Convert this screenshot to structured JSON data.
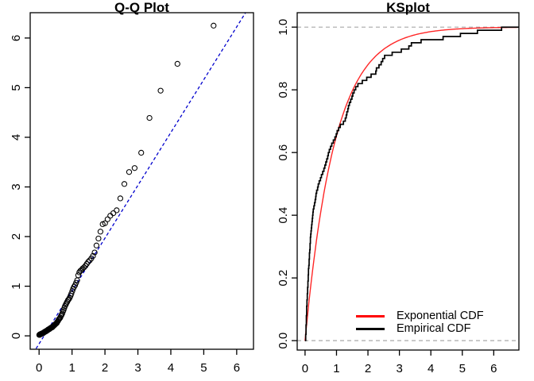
{
  "window": {
    "background": "#ffffff"
  },
  "chart_data": [
    {
      "type": "scatter",
      "title": "Q-Q Plot",
      "xlabel": "",
      "ylabel": "",
      "xlim": [
        -0.27,
        6.51
      ],
      "ylim": [
        -0.27,
        6.51
      ],
      "x_ticks": [
        0,
        1,
        2,
        3,
        4,
        5,
        6
      ],
      "y_ticks": [
        0,
        1,
        2,
        3,
        4,
        5,
        6
      ],
      "grid": false,
      "marker": {
        "shape": "open-circle",
        "color": "#000000",
        "radius_px": 3.1
      },
      "reference_line": {
        "slope": 1.064,
        "intercept": -0.16,
        "color": "#0000cd",
        "dash": [
          4,
          3
        ]
      },
      "theoretical_quantiles": [
        0.005,
        0.015,
        0.025,
        0.036,
        0.046,
        0.057,
        0.067,
        0.078,
        0.089,
        0.1,
        0.111,
        0.122,
        0.134,
        0.145,
        0.157,
        0.168,
        0.18,
        0.192,
        0.205,
        0.217,
        0.229,
        0.242,
        0.255,
        0.268,
        0.281,
        0.294,
        0.308,
        0.322,
        0.335,
        0.35,
        0.364,
        0.378,
        0.393,
        0.408,
        0.423,
        0.439,
        0.454,
        0.47,
        0.486,
        0.503,
        0.519,
        0.536,
        0.553,
        0.571,
        0.589,
        0.607,
        0.625,
        0.644,
        0.664,
        0.683,
        0.703,
        0.724,
        0.744,
        0.766,
        0.787,
        0.81,
        0.832,
        0.856,
        0.879,
        0.904,
        0.929,
        0.955,
        0.981,
        1.008,
        1.036,
        1.064,
        1.094,
        1.124,
        1.155,
        1.187,
        1.221,
        1.255,
        1.291,
        1.328,
        1.366,
        1.407,
        1.448,
        1.492,
        1.537,
        1.585,
        1.635,
        1.687,
        1.743,
        1.802,
        1.864,
        1.931,
        2.002,
        2.079,
        2.163,
        2.254,
        2.354,
        2.465,
        2.59,
        2.733,
        2.9,
        3.101,
        3.352,
        3.689,
        4.2,
        5.298
      ],
      "sample_quantiles": [
        0.02,
        0.02,
        0.03,
        0.03,
        0.03,
        0.04,
        0.04,
        0.04,
        0.05,
        0.05,
        0.05,
        0.06,
        0.06,
        0.07,
        0.07,
        0.08,
        0.08,
        0.09,
        0.09,
        0.1,
        0.1,
        0.11,
        0.11,
        0.12,
        0.13,
        0.13,
        0.14,
        0.14,
        0.15,
        0.16,
        0.16,
        0.17,
        0.17,
        0.18,
        0.19,
        0.2,
        0.21,
        0.22,
        0.23,
        0.24,
        0.25,
        0.26,
        0.28,
        0.3,
        0.32,
        0.34,
        0.35,
        0.37,
        0.4,
        0.42,
        0.45,
        0.49,
        0.52,
        0.56,
        0.6,
        0.63,
        0.66,
        0.69,
        0.72,
        0.74,
        0.77,
        0.81,
        0.85,
        0.9,
        0.95,
        0.99,
        1.02,
        1.07,
        1.12,
        1.22,
        1.28,
        1.31,
        1.33,
        1.36,
        1.38,
        1.41,
        1.45,
        1.49,
        1.52,
        1.56,
        1.61,
        1.68,
        1.82,
        1.96,
        2.1,
        2.25,
        2.27,
        2.35,
        2.42,
        2.47,
        2.53,
        2.77,
        3.06,
        3.3,
        3.38,
        3.69,
        4.39,
        4.94,
        5.48,
        6.25
      ]
    },
    {
      "type": "line",
      "title": "KSplot",
      "xlabel": "",
      "ylabel": "",
      "xlim": [
        -0.25,
        6.8
      ],
      "ylim": [
        -0.03,
        1.046
      ],
      "x_ticks": [
        0,
        1,
        2,
        3,
        4,
        5,
        6
      ],
      "y_ticks": [
        "0.0",
        "0.2",
        "0.4",
        "0.6",
        "0.8",
        "1.0"
      ],
      "grid": false,
      "exponential_rate": 1.06,
      "sample": [
        0.02,
        0.02,
        0.03,
        0.03,
        0.03,
        0.04,
        0.04,
        0.04,
        0.05,
        0.05,
        0.05,
        0.06,
        0.06,
        0.07,
        0.07,
        0.08,
        0.08,
        0.09,
        0.09,
        0.1,
        0.1,
        0.11,
        0.11,
        0.12,
        0.13,
        0.13,
        0.14,
        0.14,
        0.15,
        0.16,
        0.16,
        0.17,
        0.17,
        0.18,
        0.19,
        0.2,
        0.21,
        0.22,
        0.23,
        0.24,
        0.25,
        0.26,
        0.28,
        0.3,
        0.32,
        0.34,
        0.35,
        0.37,
        0.4,
        0.42,
        0.45,
        0.49,
        0.52,
        0.56,
        0.6,
        0.63,
        0.66,
        0.69,
        0.72,
        0.74,
        0.77,
        0.81,
        0.85,
        0.9,
        0.95,
        0.99,
        1.02,
        1.07,
        1.12,
        1.22,
        1.28,
        1.31,
        1.33,
        1.36,
        1.38,
        1.41,
        1.45,
        1.49,
        1.52,
        1.56,
        1.61,
        1.68,
        1.82,
        1.96,
        2.1,
        2.25,
        2.27,
        2.35,
        2.42,
        2.47,
        2.53,
        2.77,
        3.06,
        3.3,
        3.38,
        3.69,
        4.39,
        4.94,
        5.48,
        6.25
      ],
      "reference_lines": [
        {
          "y": 0.0,
          "color": "#a9a9a9",
          "dash": [
            5,
            4
          ]
        },
        {
          "y": 1.0,
          "color": "#a9a9a9",
          "dash": [
            5,
            4
          ]
        }
      ],
      "series_colors": {
        "exponential_cdf": "#ff0000",
        "empirical_cdf": "#000000"
      },
      "legend": {
        "position": "bottom-right",
        "items": [
          {
            "label": "Exponential CDF",
            "color": "#ff0000"
          },
          {
            "label": "Empirical CDF",
            "color": "#000000"
          }
        ]
      }
    }
  ]
}
